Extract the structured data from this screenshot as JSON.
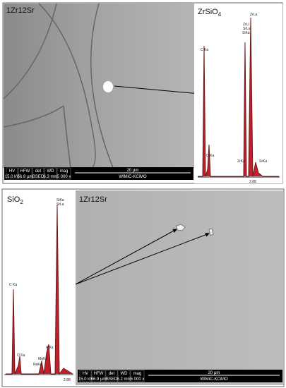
{
  "top_panel": {
    "sample": "1Zr12Sr",
    "phase": {
      "formula": "ZrSiO",
      "subscript": "4"
    },
    "peaks": [
      "C Ka",
      "O Ka",
      "ZrLa",
      "ZrLl",
      "SrLa",
      "SiKa",
      "ZrKa",
      "SrKa"
    ],
    "axis_label": "2.88",
    "info_bar": {
      "fields": [
        {
          "name": "HV",
          "value": "15.0 kV"
        },
        {
          "name": "HFW",
          "value": "56.9 µm"
        },
        {
          "name": "det",
          "value": "BSED"
        },
        {
          "name": "WD",
          "value": "6.3 mm"
        },
        {
          "name": "mag",
          "value": "5 000 x"
        }
      ],
      "scale": "20 µm",
      "lab": "WIMiC-KCiMO"
    }
  },
  "bottom_panel": {
    "sample": "1Zr12Sr",
    "phase": {
      "formula": "SiO",
      "subscript": "2"
    },
    "peaks": [
      "SiKa",
      "SrLa",
      "C Ka",
      "O Ka",
      "NaKa",
      "MgKa",
      "AlKa"
    ],
    "axis_label": "2.88",
    "info_bar": {
      "fields": [
        {
          "name": "HV",
          "value": "15.0 kV"
        },
        {
          "name": "HFW",
          "value": "56.9 µm"
        },
        {
          "name": "det",
          "value": "BSED"
        },
        {
          "name": "WD",
          "value": "6.2 mm"
        },
        {
          "name": "mag",
          "value": "5 000 x"
        }
      ],
      "scale": "20 µm",
      "lab": "WIMiC-KCiMO"
    }
  }
}
